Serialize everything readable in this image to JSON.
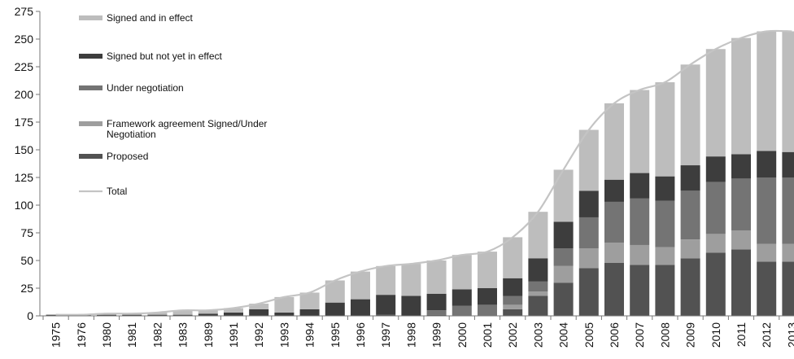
{
  "chart_data": {
    "type": "bar",
    "stacked": true,
    "categories": [
      "1975",
      "1976",
      "1980",
      "1981",
      "1982",
      "1983",
      "1989",
      "1991",
      "1992",
      "1993",
      "1994",
      "1995",
      "1996",
      "1997",
      "1998",
      "1999",
      "2000",
      "2001",
      "2002",
      "2003",
      "2004",
      "2005",
      "2006",
      "2007",
      "2008",
      "2009",
      "2010",
      "2011",
      "2012",
      "2013"
    ],
    "series": [
      {
        "name": "Proposed",
        "color": "#525252",
        "values": [
          0,
          0,
          0,
          0,
          0,
          0,
          0,
          0,
          0,
          0,
          0,
          0,
          0,
          1,
          0,
          1,
          0,
          0,
          6,
          18,
          30,
          43,
          48,
          46,
          46,
          52,
          57,
          60,
          49,
          49
        ]
      },
      {
        "name": "Framework agreement Signed/Under Negotiation",
        "color": "#9e9e9e",
        "values": [
          0,
          0,
          0,
          0,
          0,
          0,
          0,
          0,
          0,
          0,
          0,
          0,
          0,
          0,
          0,
          0,
          0,
          0,
          4,
          4,
          15,
          18,
          18,
          18,
          16,
          17,
          17,
          17,
          16,
          16
        ]
      },
      {
        "name": "Under negotiation",
        "color": "#747474",
        "values": [
          0,
          0,
          0,
          0,
          0,
          0,
          0,
          0,
          0,
          0,
          0,
          0,
          0,
          0,
          0,
          4,
          9,
          10,
          8,
          9,
          16,
          28,
          37,
          42,
          42,
          44,
          47,
          47,
          60,
          60
        ]
      },
      {
        "name": "Signed but not yet in effect",
        "color": "#3d3d3d",
        "values": [
          1,
          1,
          1,
          1,
          1,
          1,
          2,
          3,
          6,
          3,
          6,
          12,
          15,
          18,
          18,
          15,
          15,
          15,
          16,
          21,
          24,
          24,
          20,
          23,
          22,
          23,
          23,
          22,
          24,
          23
        ]
      },
      {
        "name": "Signed and in effect",
        "color": "#bdbdbd",
        "values": [
          0,
          0,
          1,
          1,
          2,
          4,
          3,
          4,
          5,
          14,
          15,
          20,
          25,
          26,
          29,
          30,
          31,
          33,
          37,
          42,
          47,
          55,
          69,
          75,
          85,
          91,
          97,
          105,
          108,
          109
        ]
      }
    ],
    "total": {
      "name": "Total",
      "color": "#c4c4c4",
      "values": [
        1,
        1,
        2,
        2,
        3,
        5,
        5,
        7,
        11,
        17,
        21,
        32,
        40,
        45,
        47,
        50,
        55,
        58,
        71,
        94,
        132,
        168,
        192,
        204,
        211,
        227,
        241,
        251,
        257,
        257
      ]
    },
    "y_ticks": [
      "0",
      "25",
      "50",
      "75",
      "100",
      "125",
      "150",
      "175",
      "200",
      "225",
      "250",
      "275"
    ],
    "ylim": [
      0,
      275
    ],
    "legend_placement": "top-left",
    "grid": false
  },
  "legend": [
    {
      "label": "Signed and in effect",
      "color": "#bdbdbd",
      "kind": "box"
    },
    {
      "label": "Signed but not yet in effect",
      "color": "#3d3d3d",
      "kind": "box"
    },
    {
      "label": "Under negotiation",
      "color": "#747474",
      "kind": "box"
    },
    {
      "label_lines": [
        "Framework agreement Signed/Under",
        "Negotiation"
      ],
      "color": "#9e9e9e",
      "kind": "box"
    },
    {
      "label": "Proposed",
      "color": "#525252",
      "kind": "box"
    },
    {
      "label": "Total",
      "color": "#c4c4c4",
      "kind": "line"
    }
  ]
}
